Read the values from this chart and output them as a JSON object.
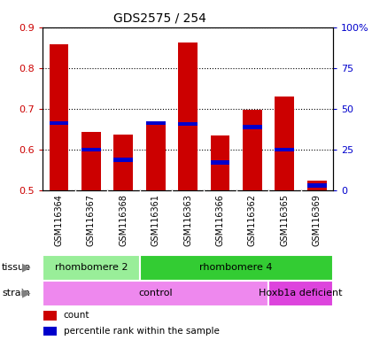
{
  "title": "GDS2575 / 254",
  "samples": [
    "GSM116364",
    "GSM116367",
    "GSM116368",
    "GSM116361",
    "GSM116363",
    "GSM116366",
    "GSM116362",
    "GSM116365",
    "GSM116369"
  ],
  "bar_bottom": 0.5,
  "count_values": [
    0.858,
    0.644,
    0.636,
    0.668,
    0.862,
    0.634,
    0.697,
    0.73,
    0.524
  ],
  "percentile_values": [
    0.665,
    0.6,
    0.575,
    0.665,
    0.663,
    0.568,
    0.655,
    0.6,
    0.512
  ],
  "ylim": [
    0.5,
    0.9
  ],
  "yticks": [
    0.5,
    0.6,
    0.7,
    0.8,
    0.9
  ],
  "right_ytick_labels": [
    "0",
    "25",
    "50",
    "75",
    "100%"
  ],
  "bar_color": "#cc0000",
  "percentile_color": "#0000cc",
  "tissue_groups": [
    {
      "label": "rhombomere 2",
      "start": 0,
      "end": 3,
      "color": "#99ee99"
    },
    {
      "label": "rhombomere 4",
      "start": 3,
      "end": 9,
      "color": "#33cc33"
    }
  ],
  "strain_groups": [
    {
      "label": "control",
      "start": 0,
      "end": 7,
      "color": "#ee88ee"
    },
    {
      "label": "Hoxb1a deficient",
      "start": 7,
      "end": 9,
      "color": "#dd44dd"
    }
  ],
  "legend_items": [
    {
      "label": "count",
      "color": "#cc0000"
    },
    {
      "label": "percentile rank within the sample",
      "color": "#0000cc"
    }
  ],
  "sample_bg_color": "#cccccc",
  "sample_sep_color": "#ffffff",
  "plot_bg": "#ffffff",
  "title_color": "#000000",
  "left_tick_color": "#cc0000",
  "right_tick_color": "#0000cc",
  "right_label_color": "#0000cc"
}
